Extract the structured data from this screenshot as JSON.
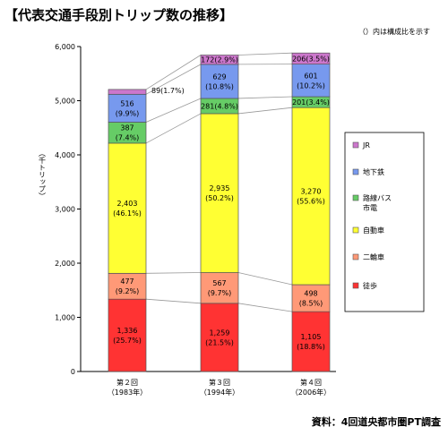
{
  "chart_data": {
    "type": "bar",
    "stacked": true,
    "title": "【代表交通手段別トリップ数の推移】",
    "note": "（）内は構成比を示す",
    "ylabel": "（千トリップ）",
    "ylim": [
      0,
      6000
    ],
    "yticks": [
      "0",
      "1,000",
      "2,000",
      "3,000",
      "4,000",
      "5,000",
      "6,000"
    ],
    "ytick_values": [
      0,
      1000,
      2000,
      3000,
      4000,
      5000,
      6000
    ],
    "grid": false,
    "legend_position": "right",
    "categories": [
      {
        "line1": "第２回",
        "line2": "（1983年）"
      },
      {
        "line1": "第３回",
        "line2": "（1994年）"
      },
      {
        "line1": "第４回",
        "line2": "（2006年）"
      }
    ],
    "series": [
      {
        "name": "徒歩",
        "color": "#ff3333",
        "values": [
          1336,
          1259,
          1105
        ],
        "labels": [
          [
            "1,336",
            "(25.7%)"
          ],
          [
            "1,259",
            "(21.5%)"
          ],
          [
            "1,105",
            "(18.8%)"
          ]
        ]
      },
      {
        "name": "二輪車",
        "color": "#ff9977",
        "values": [
          477,
          567,
          498
        ],
        "labels": [
          [
            "477",
            "(9.2%)"
          ],
          [
            "567",
            "(9.7%)"
          ],
          [
            "498",
            "(8.5%)"
          ]
        ]
      },
      {
        "name": "自動車",
        "color": "#ffff33",
        "values": [
          2403,
          2935,
          3270
        ],
        "labels": [
          [
            "2,403",
            "(46.1%)"
          ],
          [
            "2,935",
            "(50.2%)"
          ],
          [
            "3,270",
            "(55.6%)"
          ]
        ]
      },
      {
        "name": "路線バス\n市電",
        "color": "#66cc66",
        "values": [
          387,
          281,
          201
        ],
        "labels": [
          [
            "387",
            "(7.4%)"
          ],
          [
            "281(4.8%)"
          ],
          [
            "201(3.4%)"
          ]
        ]
      },
      {
        "name": "地下鉄",
        "color": "#7799ee",
        "values": [
          516,
          629,
          601
        ],
        "labels": [
          [
            "516",
            "(9.9%)"
          ],
          [
            "629",
            "(10.8%)"
          ],
          [
            "601",
            "(10.2%)"
          ]
        ]
      },
      {
        "name": "JR",
        "color": "#cc77cc",
        "values": [
          89,
          172,
          206
        ],
        "labels": [
          [
            "89(1.7%)"
          ],
          [
            "172(2.9%)"
          ],
          [
            "206(3.5%)"
          ]
        ]
      }
    ],
    "source": "資料：4回道央都市圏PT調査"
  }
}
